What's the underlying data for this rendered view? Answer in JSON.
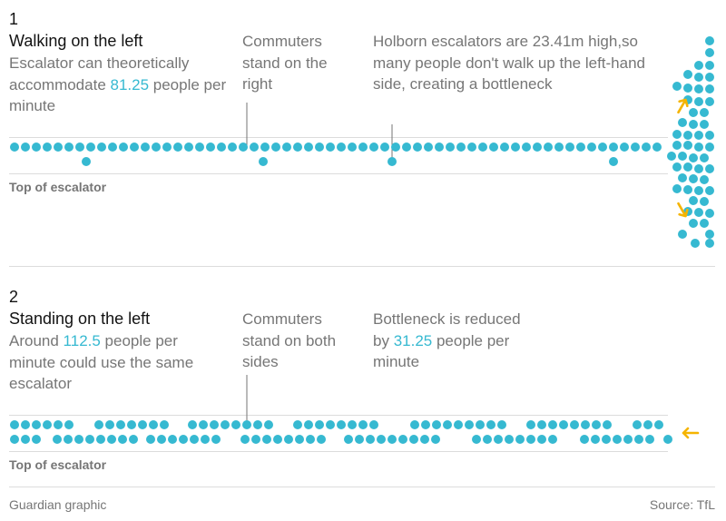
{
  "section1": {
    "number": "1",
    "title": "Walking on the left",
    "desc_pre": "Escalator can theoretically accommodate ",
    "desc_value": "81.25",
    "desc_post": " people per minute",
    "annotation1": "Commuters stand on the right",
    "annotation2": "Holborn escalators are 23.41m high,so many people don't walk up the left-hand side, creating a bottleneck",
    "top_label": "Top of escalator"
  },
  "section2": {
    "number": "2",
    "title": "Standing on the left",
    "desc_pre": "Around ",
    "desc_value": "112.5",
    "desc_post": " people per minute could use the same escalator",
    "annotation1": "Commuters stand on both sides",
    "annotation2_pre": "Bottleneck is reduced by ",
    "annotation2_value": "31.25",
    "annotation2_post": " people per minute",
    "top_label": "Top of escalator"
  },
  "footer": {
    "credit": "Guardian graphic",
    "source": "Source: TfL"
  },
  "colors": {
    "dot": "#36b9d1",
    "arrow": "#f5b400",
    "rule": "#dcdcdc",
    "text_dark": "#121212",
    "text_muted": "#767676"
  }
}
